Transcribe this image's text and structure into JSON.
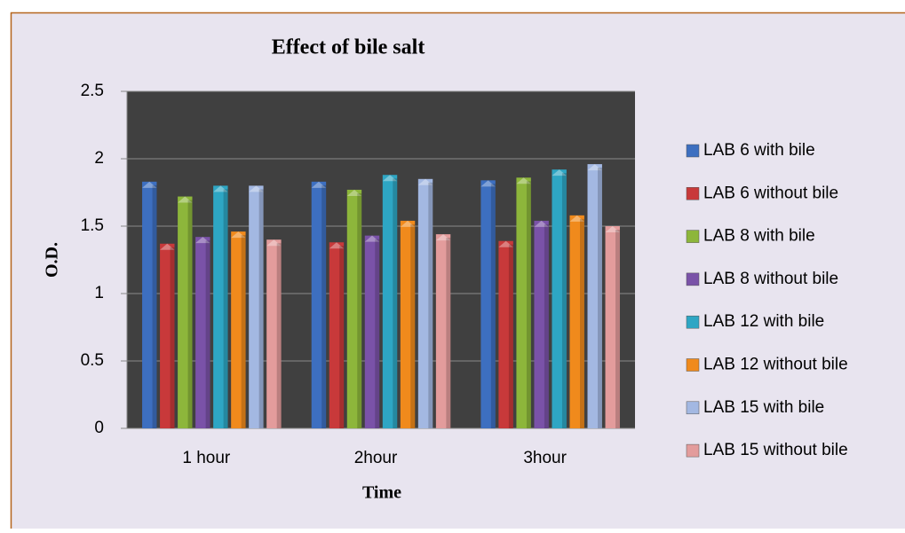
{
  "chart_data": {
    "type": "bar",
    "title": "Effect of  bile salt",
    "x_label": "Time",
    "y_label": "O.D.",
    "categories": [
      "1 hour",
      "2hour",
      "3hour"
    ],
    "series": [
      {
        "name": "LAB 6 with bile",
        "color": "#3d6fc0",
        "values": [
          1.83,
          1.83,
          1.84
        ]
      },
      {
        "name": "LAB 6 without bile",
        "color": "#c8393a",
        "values": [
          1.37,
          1.38,
          1.39
        ]
      },
      {
        "name": "LAB 8 with bile",
        "color": "#8db63b",
        "values": [
          1.72,
          1.77,
          1.86
        ]
      },
      {
        "name": "LAB 8 without bile",
        "color": "#7a52a8",
        "values": [
          1.42,
          1.43,
          1.54
        ]
      },
      {
        "name": "LAB 12 with bile",
        "color": "#2ea6c4",
        "values": [
          1.8,
          1.88,
          1.92
        ]
      },
      {
        "name": "LAB 12 without bile",
        "color": "#f08a1c",
        "values": [
          1.46,
          1.54,
          1.58
        ]
      },
      {
        "name": "LAB 15 with bile",
        "color": "#a3b8e2",
        "values": [
          1.8,
          1.85,
          1.96
        ]
      },
      {
        "name": "LAB 15 without bile",
        "color": "#e39c9c",
        "values": [
          1.4,
          1.44,
          1.5
        ]
      }
    ],
    "ylim": [
      0,
      2.5
    ],
    "yticks": [
      0,
      0.5,
      1,
      1.5,
      2,
      2.5
    ],
    "grid": true,
    "legend": "right"
  }
}
